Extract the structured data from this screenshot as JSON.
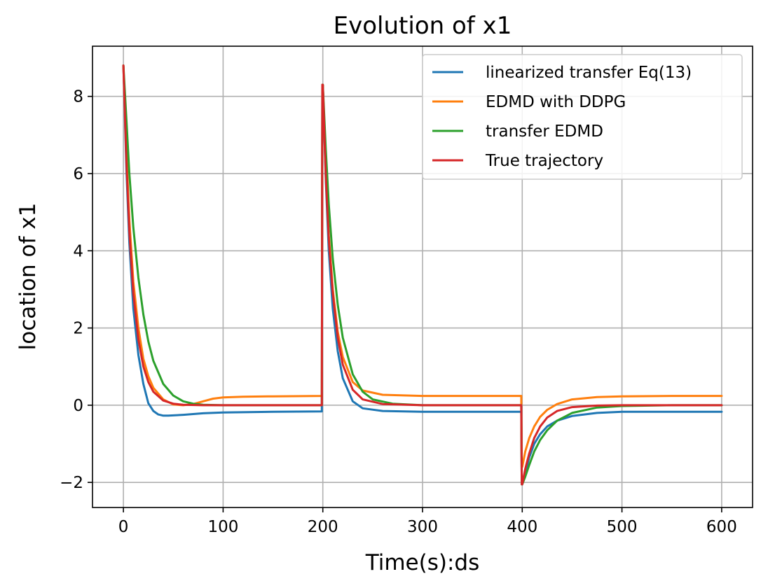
{
  "chart_data": {
    "type": "line",
    "title": "Evolution of x1",
    "xlabel": "Time(s):ds",
    "ylabel": "location of x1",
    "xlim": [
      -31,
      631
    ],
    "ylim": [
      -2.65,
      9.3
    ],
    "xticks": [
      0,
      100,
      200,
      300,
      400,
      500,
      600
    ],
    "yticks": [
      -2,
      0,
      2,
      4,
      6,
      8
    ],
    "grid": true,
    "legend_position": "upper right",
    "series": [
      {
        "name": "linearized transfer Eq(13)",
        "color": "#1f77b4",
        "x": [
          0,
          3,
          6,
          10,
          15,
          20,
          25,
          30,
          35,
          40,
          45,
          60,
          80,
          100,
          150,
          199,
          199.5,
          200,
          203,
          206,
          210,
          215,
          220,
          230,
          240,
          260,
          300,
          350,
          399,
          399.5,
          400,
          403,
          407,
          412,
          418,
          425,
          435,
          450,
          475,
          500,
          550,
          600
        ],
        "y": [
          8.8,
          6.1,
          4.2,
          2.5,
          1.3,
          0.55,
          0.05,
          -0.15,
          -0.24,
          -0.27,
          -0.27,
          -0.25,
          -0.21,
          -0.19,
          -0.17,
          -0.16,
          8.3,
          8.3,
          5.8,
          4.0,
          2.5,
          1.4,
          0.7,
          0.1,
          -0.08,
          -0.15,
          -0.17,
          -0.17,
          -0.17,
          -2.05,
          -2.05,
          -1.75,
          -1.35,
          -1.0,
          -0.75,
          -0.55,
          -0.4,
          -0.28,
          -0.2,
          -0.17,
          -0.17,
          -0.17
        ]
      },
      {
        "name": "EDMD with DDPG",
        "color": "#ff7f0e",
        "x": [
          0,
          3,
          6,
          10,
          15,
          20,
          25,
          30,
          40,
          50,
          60,
          70,
          80,
          90,
          100,
          120,
          150,
          199,
          199.5,
          200,
          203,
          206,
          210,
          215,
          220,
          230,
          240,
          260,
          300,
          350,
          399,
          399.5,
          400,
          403,
          407,
          412,
          418,
          425,
          435,
          450,
          475,
          500,
          550,
          600
        ],
        "y": [
          8.8,
          6.5,
          4.8,
          3.2,
          2.0,
          1.2,
          0.75,
          0.45,
          0.15,
          0.02,
          0.0,
          0.03,
          0.1,
          0.17,
          0.2,
          0.22,
          0.23,
          0.24,
          8.3,
          8.3,
          6.0,
          4.4,
          3.0,
          1.9,
          1.25,
          0.6,
          0.38,
          0.27,
          0.24,
          0.24,
          0.24,
          -1.6,
          -1.6,
          -1.2,
          -0.85,
          -0.55,
          -0.3,
          -0.12,
          0.03,
          0.15,
          0.21,
          0.23,
          0.24,
          0.24
        ]
      },
      {
        "name": "transfer EDMD",
        "color": "#2ca02c",
        "x": [
          0,
          3,
          6,
          10,
          15,
          20,
          25,
          30,
          40,
          50,
          60,
          70,
          80,
          100,
          150,
          199,
          199.5,
          200,
          203,
          206,
          210,
          215,
          220,
          230,
          240,
          250,
          270,
          300,
          350,
          399,
          399.5,
          400,
          403,
          407,
          412,
          418,
          425,
          435,
          450,
          475,
          500,
          550,
          600
        ],
        "y": [
          8.8,
          7.4,
          6.0,
          4.6,
          3.3,
          2.35,
          1.65,
          1.15,
          0.55,
          0.25,
          0.1,
          0.04,
          0.01,
          0.0,
          0.0,
          0.0,
          8.3,
          8.3,
          6.6,
          5.2,
          3.8,
          2.6,
          1.75,
          0.8,
          0.35,
          0.15,
          0.04,
          0.0,
          0.0,
          0.0,
          -2.05,
          -2.05,
          -1.85,
          -1.55,
          -1.2,
          -0.9,
          -0.65,
          -0.4,
          -0.2,
          -0.06,
          -0.02,
          0.0,
          0.0
        ]
      },
      {
        "name": "True trajectory",
        "color": "#d62728",
        "x": [
          0,
          3,
          6,
          10,
          15,
          20,
          25,
          30,
          40,
          50,
          60,
          80,
          100,
          150,
          199,
          199.5,
          200,
          203,
          206,
          210,
          215,
          220,
          230,
          240,
          260,
          300,
          350,
          399,
          399.5,
          400,
          403,
          407,
          412,
          418,
          425,
          435,
          450,
          475,
          500,
          550,
          600
        ],
        "y": [
          8.8,
          6.3,
          4.5,
          2.9,
          1.7,
          1.0,
          0.6,
          0.35,
          0.12,
          0.04,
          0.01,
          0.0,
          0.0,
          0.0,
          0.0,
          8.3,
          8.3,
          5.9,
          4.3,
          2.9,
          1.75,
          1.05,
          0.4,
          0.15,
          0.03,
          0.0,
          0.0,
          0.0,
          -2.05,
          -2.05,
          -1.65,
          -1.25,
          -0.85,
          -0.55,
          -0.32,
          -0.15,
          -0.05,
          -0.01,
          0.0,
          0.0,
          0.0
        ]
      }
    ]
  }
}
